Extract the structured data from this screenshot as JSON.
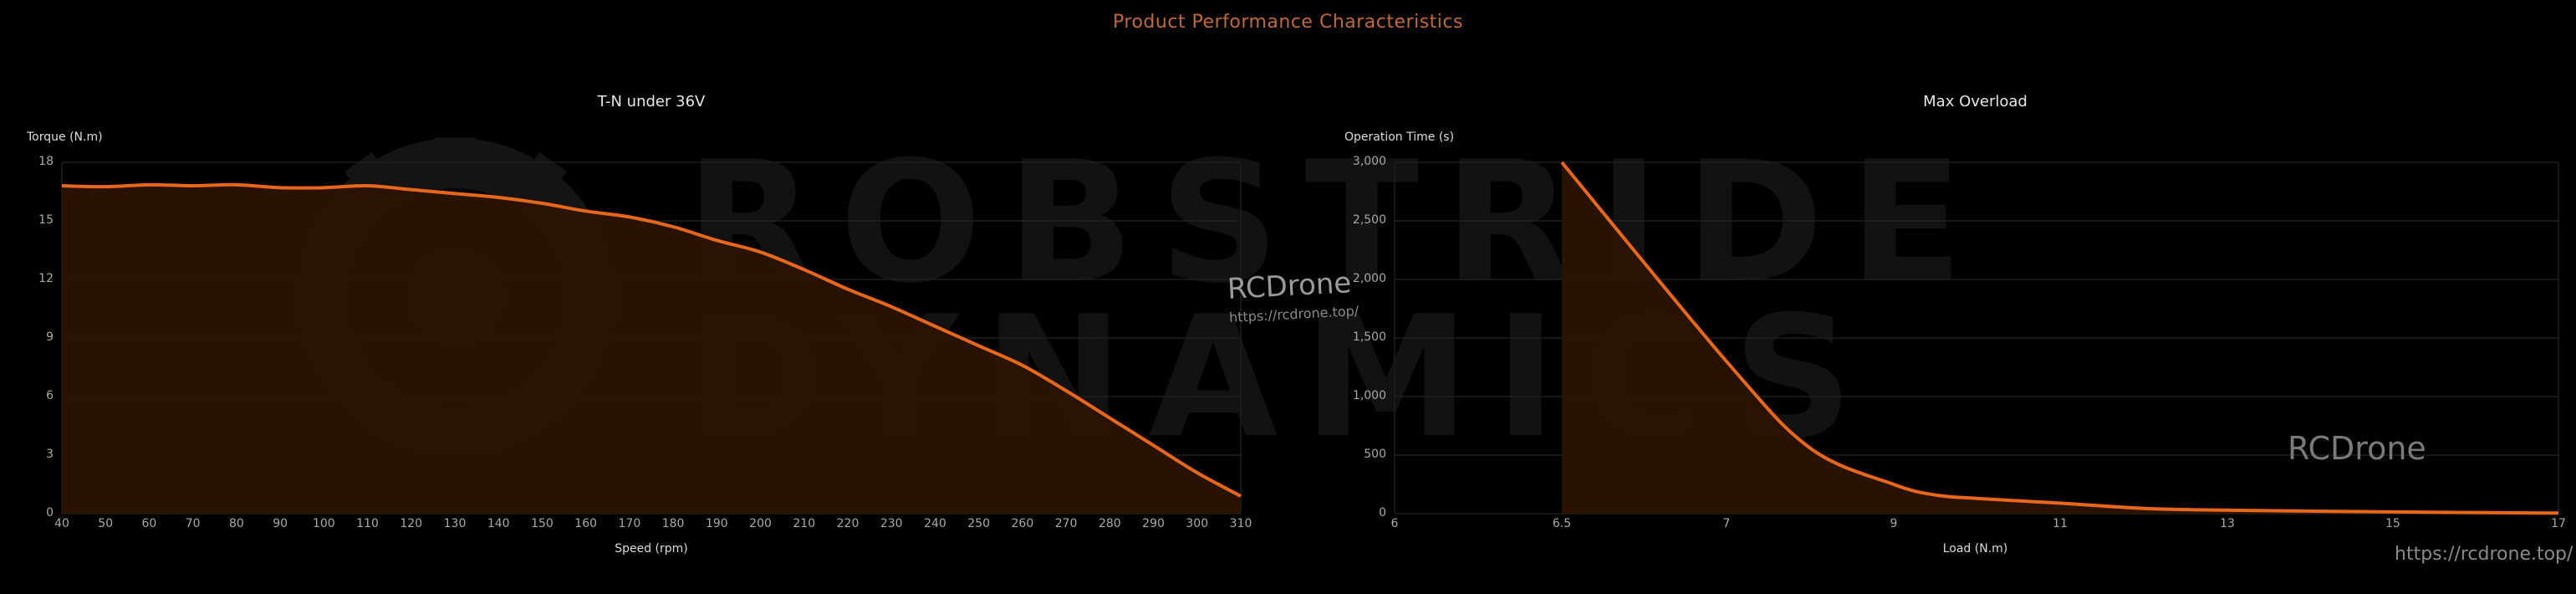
{
  "page": {
    "title": "Product Performance Characteristics",
    "accent_color": "#e8671b",
    "fill_color": "#2e1402",
    "background": "#000000"
  },
  "watermarks": {
    "brand_line1": "ROBSTRIDE",
    "brand_line2": "DYNAMICS",
    "rcdrone_text": "RCDrone",
    "rcdrone_url": "https://rcdrone.top/"
  },
  "chart_data": [
    {
      "type": "area",
      "title": "T-N under 36V",
      "xlabel": "Speed (rpm)",
      "ylabel": "Torque (N.m)",
      "xlim": [
        40,
        310
      ],
      "ylim": [
        0,
        18
      ],
      "x_ticks": [
        "40",
        "50",
        "60",
        "70",
        "80",
        "90",
        "100",
        "110",
        "120",
        "130",
        "140",
        "150",
        "160",
        "170",
        "180",
        "190",
        "200",
        "210",
        "220",
        "230",
        "240",
        "250",
        "260",
        "270",
        "280",
        "290",
        "300",
        "310"
      ],
      "y_ticks": [
        "0",
        "3",
        "6",
        "9",
        "12",
        "15",
        "18"
      ],
      "grid": true,
      "x": [
        40,
        50,
        60,
        70,
        80,
        90,
        100,
        110,
        120,
        130,
        140,
        150,
        160,
        170,
        180,
        190,
        200,
        210,
        220,
        230,
        240,
        250,
        260,
        270,
        280,
        290,
        300,
        310
      ],
      "values": [
        16.8,
        16.75,
        16.85,
        16.8,
        16.85,
        16.7,
        16.7,
        16.8,
        16.6,
        16.4,
        16.2,
        15.9,
        15.5,
        15.2,
        14.7,
        14.0,
        13.4,
        12.5,
        11.5,
        10.6,
        9.6,
        8.6,
        7.6,
        6.3,
        4.9,
        3.5,
        2.1,
        0.9
      ]
    },
    {
      "type": "area",
      "title": "Max Overload",
      "xlabel": "Load (N.m)",
      "ylabel": "Operation Time (s)",
      "x_ticks": [
        "6",
        "6.5",
        "7",
        "9",
        "11",
        "13",
        "15",
        "17"
      ],
      "y_ticks": [
        "0",
        "500",
        "1,000",
        "1,500",
        "2,000",
        "2,500",
        "3,000"
      ],
      "ylim": [
        0,
        3000
      ],
      "grid": true,
      "x": [
        6.5,
        7,
        8,
        9,
        9.5,
        10,
        11,
        12,
        13,
        15,
        17
      ],
      "values": [
        3000,
        1300,
        560,
        250,
        160,
        130,
        90,
        45,
        30,
        15,
        5
      ]
    }
  ]
}
